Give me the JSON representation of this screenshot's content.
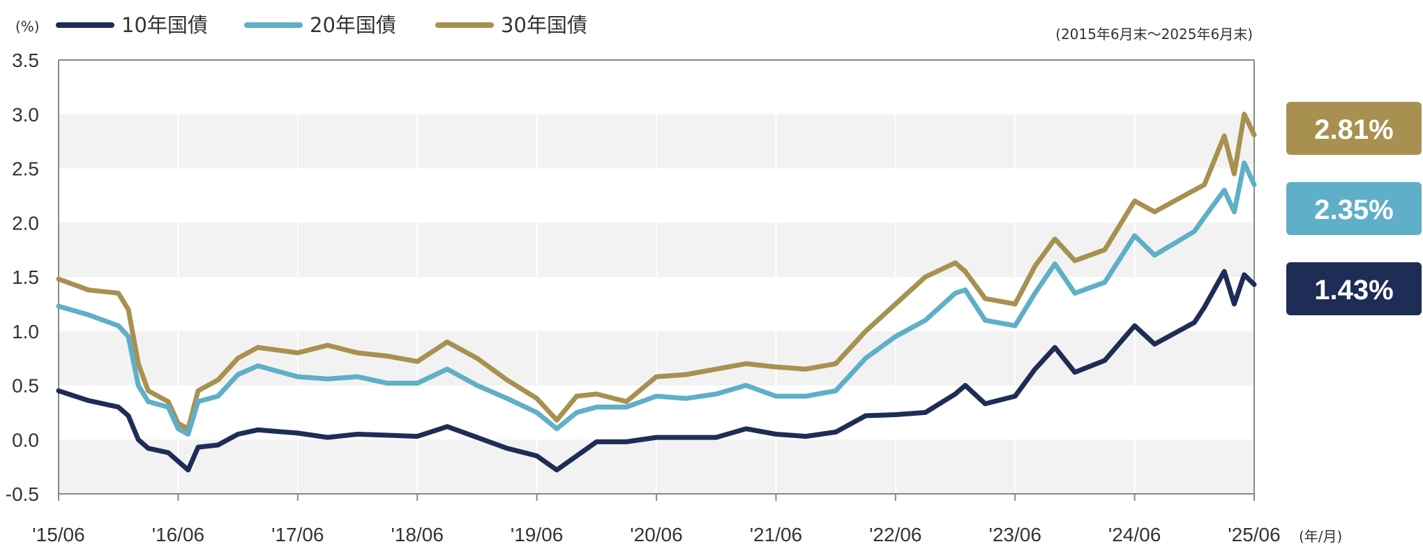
{
  "chart_data": {
    "type": "line",
    "title": "",
    "ylabel": "(%)",
    "xlabel": "",
    "x_unit_note": "(年/月)",
    "period_note": "(2015年6月末〜2025年6月末)",
    "x_tick_labels": [
      "'15/06",
      "'16/06",
      "'17/06",
      "'18/06",
      "'19/06",
      "'20/06",
      "'21/06",
      "'22/06",
      "'23/06",
      "'24/06",
      "'25/06"
    ],
    "y_ticks": [
      -0.5,
      0.0,
      0.5,
      1.0,
      1.5,
      2.0,
      2.5,
      3.0,
      3.5
    ],
    "y_tick_labels": [
      "-0.5",
      "0.0",
      "0.5",
      "1.0",
      "1.5",
      "2.0",
      "2.5",
      "3.0",
      "3.5"
    ],
    "ylim": [
      -0.5,
      3.5
    ],
    "xlim": [
      "2015-06",
      "2025-06"
    ],
    "grid": "horizontal bands, vertical yearly lines",
    "legend_position": "top-left",
    "series": [
      {
        "name": "10年国債",
        "color": "#1e2d55",
        "latest_label": "1.43%",
        "points": [
          [
            "2015-06",
            0.45
          ],
          [
            "2015-09",
            0.36
          ],
          [
            "2015-12",
            0.3
          ],
          [
            "2016-01",
            0.22
          ],
          [
            "2016-02",
            0.0
          ],
          [
            "2016-03",
            -0.08
          ],
          [
            "2016-05",
            -0.12
          ],
          [
            "2016-06",
            -0.2
          ],
          [
            "2016-07",
            -0.28
          ],
          [
            "2016-08",
            -0.07
          ],
          [
            "2016-10",
            -0.05
          ],
          [
            "2016-12",
            0.05
          ],
          [
            "2017-02",
            0.09
          ],
          [
            "2017-06",
            0.06
          ],
          [
            "2017-09",
            0.02
          ],
          [
            "2017-12",
            0.05
          ],
          [
            "2018-03",
            0.04
          ],
          [
            "2018-06",
            0.03
          ],
          [
            "2018-09",
            0.12
          ],
          [
            "2018-12",
            0.02
          ],
          [
            "2019-03",
            -0.08
          ],
          [
            "2019-06",
            -0.15
          ],
          [
            "2019-08",
            -0.28
          ],
          [
            "2019-10",
            -0.15
          ],
          [
            "2019-12",
            -0.02
          ],
          [
            "2020-03",
            -0.02
          ],
          [
            "2020-06",
            0.02
          ],
          [
            "2020-09",
            0.02
          ],
          [
            "2020-12",
            0.02
          ],
          [
            "2021-03",
            0.1
          ],
          [
            "2021-06",
            0.05
          ],
          [
            "2021-09",
            0.03
          ],
          [
            "2021-12",
            0.07
          ],
          [
            "2022-03",
            0.22
          ],
          [
            "2022-06",
            0.23
          ],
          [
            "2022-09",
            0.25
          ],
          [
            "2022-12",
            0.42
          ],
          [
            "2023-01",
            0.5
          ],
          [
            "2023-03",
            0.33
          ],
          [
            "2023-06",
            0.4
          ],
          [
            "2023-08",
            0.65
          ],
          [
            "2023-10",
            0.85
          ],
          [
            "2023-12",
            0.62
          ],
          [
            "2024-03",
            0.73
          ],
          [
            "2024-06",
            1.05
          ],
          [
            "2024-08",
            0.88
          ],
          [
            "2024-12",
            1.08
          ],
          [
            "2025-01",
            1.22
          ],
          [
            "2025-03",
            1.55
          ],
          [
            "2025-04",
            1.25
          ],
          [
            "2025-05",
            1.52
          ],
          [
            "2025-06",
            1.43
          ]
        ]
      },
      {
        "name": "20年国債",
        "color": "#5fafc8",
        "latest_label": "2.35%",
        "points": [
          [
            "2015-06",
            1.23
          ],
          [
            "2015-09",
            1.15
          ],
          [
            "2015-12",
            1.05
          ],
          [
            "2016-01",
            0.95
          ],
          [
            "2016-02",
            0.5
          ],
          [
            "2016-03",
            0.35
          ],
          [
            "2016-05",
            0.3
          ],
          [
            "2016-06",
            0.1
          ],
          [
            "2016-07",
            0.05
          ],
          [
            "2016-08",
            0.35
          ],
          [
            "2016-10",
            0.4
          ],
          [
            "2016-12",
            0.6
          ],
          [
            "2017-02",
            0.68
          ],
          [
            "2017-06",
            0.58
          ],
          [
            "2017-09",
            0.56
          ],
          [
            "2017-12",
            0.58
          ],
          [
            "2018-03",
            0.52
          ],
          [
            "2018-06",
            0.52
          ],
          [
            "2018-09",
            0.65
          ],
          [
            "2018-12",
            0.5
          ],
          [
            "2019-03",
            0.38
          ],
          [
            "2019-06",
            0.25
          ],
          [
            "2019-08",
            0.1
          ],
          [
            "2019-10",
            0.25
          ],
          [
            "2019-12",
            0.3
          ],
          [
            "2020-03",
            0.3
          ],
          [
            "2020-06",
            0.4
          ],
          [
            "2020-09",
            0.38
          ],
          [
            "2020-12",
            0.42
          ],
          [
            "2021-03",
            0.5
          ],
          [
            "2021-06",
            0.4
          ],
          [
            "2021-09",
            0.4
          ],
          [
            "2021-12",
            0.45
          ],
          [
            "2022-03",
            0.75
          ],
          [
            "2022-06",
            0.95
          ],
          [
            "2022-09",
            1.1
          ],
          [
            "2022-12",
            1.35
          ],
          [
            "2023-01",
            1.38
          ],
          [
            "2023-03",
            1.1
          ],
          [
            "2023-06",
            1.05
          ],
          [
            "2023-08",
            1.35
          ],
          [
            "2023-10",
            1.62
          ],
          [
            "2023-12",
            1.35
          ],
          [
            "2024-03",
            1.45
          ],
          [
            "2024-06",
            1.88
          ],
          [
            "2024-08",
            1.7
          ],
          [
            "2024-12",
            1.92
          ],
          [
            "2025-01",
            2.05
          ],
          [
            "2025-03",
            2.3
          ],
          [
            "2025-04",
            2.1
          ],
          [
            "2025-05",
            2.55
          ],
          [
            "2025-06",
            2.35
          ]
        ]
      },
      {
        "name": "30年国債",
        "color": "#a89150",
        "latest_label": "2.81%",
        "points": [
          [
            "2015-06",
            1.48
          ],
          [
            "2015-09",
            1.38
          ],
          [
            "2015-12",
            1.35
          ],
          [
            "2016-01",
            1.2
          ],
          [
            "2016-02",
            0.7
          ],
          [
            "2016-03",
            0.45
          ],
          [
            "2016-05",
            0.35
          ],
          [
            "2016-06",
            0.15
          ],
          [
            "2016-07",
            0.1
          ],
          [
            "2016-08",
            0.45
          ],
          [
            "2016-10",
            0.55
          ],
          [
            "2016-12",
            0.75
          ],
          [
            "2017-02",
            0.85
          ],
          [
            "2017-06",
            0.8
          ],
          [
            "2017-09",
            0.87
          ],
          [
            "2017-12",
            0.8
          ],
          [
            "2018-03",
            0.77
          ],
          [
            "2018-06",
            0.72
          ],
          [
            "2018-09",
            0.9
          ],
          [
            "2018-12",
            0.75
          ],
          [
            "2019-03",
            0.55
          ],
          [
            "2019-06",
            0.38
          ],
          [
            "2019-08",
            0.18
          ],
          [
            "2019-10",
            0.4
          ],
          [
            "2019-12",
            0.42
          ],
          [
            "2020-03",
            0.35
          ],
          [
            "2020-06",
            0.58
          ],
          [
            "2020-09",
            0.6
          ],
          [
            "2020-12",
            0.65
          ],
          [
            "2021-03",
            0.7
          ],
          [
            "2021-06",
            0.67
          ],
          [
            "2021-09",
            0.65
          ],
          [
            "2021-12",
            0.7
          ],
          [
            "2022-03",
            1.0
          ],
          [
            "2022-06",
            1.25
          ],
          [
            "2022-09",
            1.5
          ],
          [
            "2022-12",
            1.63
          ],
          [
            "2023-01",
            1.55
          ],
          [
            "2023-03",
            1.3
          ],
          [
            "2023-06",
            1.25
          ],
          [
            "2023-08",
            1.6
          ],
          [
            "2023-10",
            1.85
          ],
          [
            "2023-12",
            1.65
          ],
          [
            "2024-03",
            1.75
          ],
          [
            "2024-06",
            2.2
          ],
          [
            "2024-08",
            2.1
          ],
          [
            "2024-12",
            2.3
          ],
          [
            "2025-01",
            2.35
          ],
          [
            "2025-03",
            2.8
          ],
          [
            "2025-04",
            2.45
          ],
          [
            "2025-05",
            3.0
          ],
          [
            "2025-06",
            2.81
          ]
        ]
      }
    ]
  }
}
